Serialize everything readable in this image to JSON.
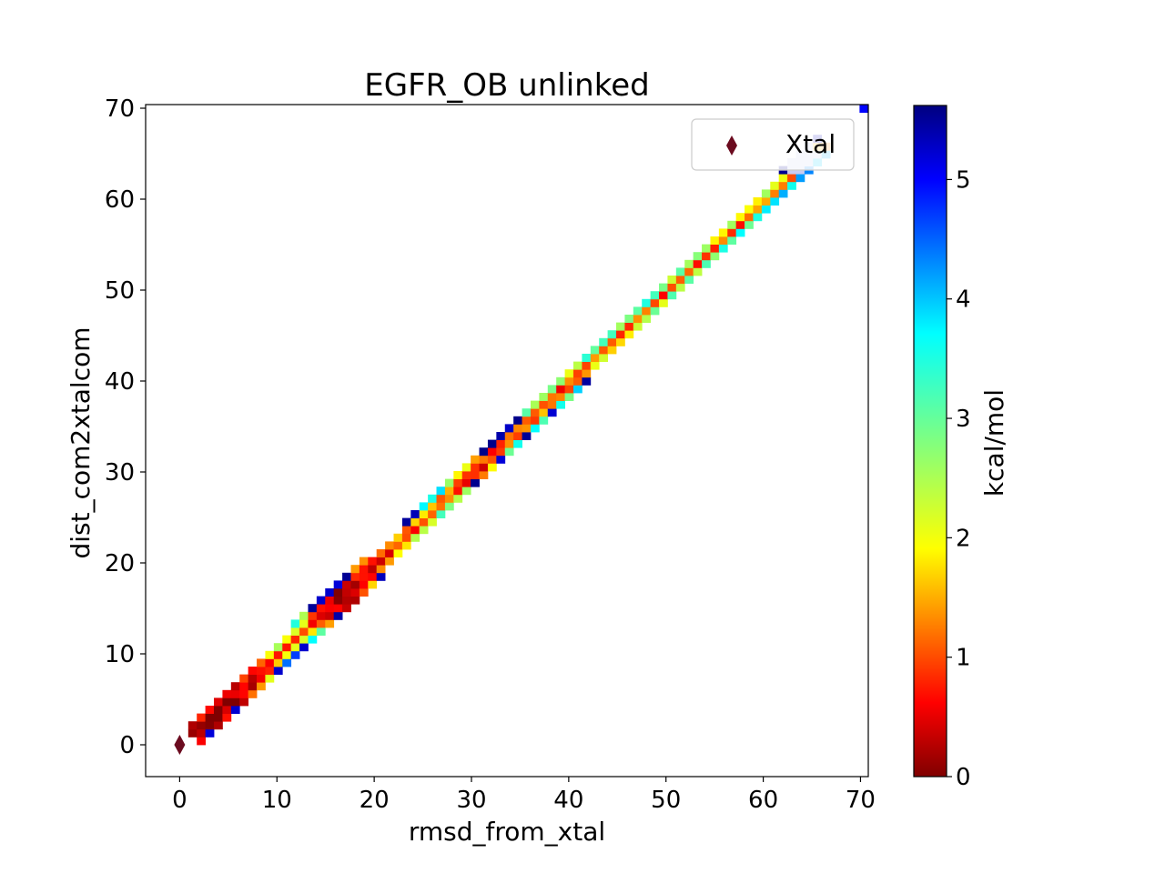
{
  "chart_data": {
    "type": "heatmap",
    "title": "EGFR_OB unlinked",
    "xlabel": "rmsd_from_xtal",
    "ylabel": "dist_com2xtalcom",
    "xlim": [
      -3.5,
      70.8
    ],
    "ylim": [
      -3.5,
      70.4
    ],
    "xticks": [
      0,
      10,
      20,
      30,
      40,
      50,
      60,
      70
    ],
    "yticks": [
      0,
      10,
      20,
      30,
      40,
      50,
      60,
      70
    ],
    "colorbar": {
      "label": "kcal/mol",
      "range": [
        0,
        5.62
      ],
      "ticks": [
        0,
        1,
        2,
        3,
        4,
        5
      ],
      "colormap": "jet_r"
    },
    "bin_size": [
      0.88,
      0.86
    ],
    "grid": false,
    "legend": {
      "placement": "top-right",
      "entries": [
        {
          "label": "Xtal",
          "marker": "diamond",
          "color": "#6b0b1f"
        }
      ]
    },
    "xtal_point": {
      "x": 0,
      "y": 0
    },
    "diagonal_band": [
      [
        1.3,
        0,
        0.9
      ],
      [
        2.3,
        0.1,
        1.0
      ],
      [
        3.2,
        0.1,
        0.3
      ],
      [
        4.2,
        0.2,
        0.5
      ],
      [
        5.2,
        0.3,
        0.6
      ],
      [
        6.5,
        0.4,
        0.9
      ],
      [
        8.0,
        0.5,
        1.8
      ],
      [
        9.5,
        0.9,
        3.8
      ],
      [
        11.0,
        1.1,
        4.0
      ],
      [
        12.5,
        1.0,
        3.5
      ],
      [
        13.5,
        0.8,
        1.8
      ],
      [
        14.5,
        0.4,
        1.2
      ],
      [
        15.5,
        0.2,
        0.6
      ],
      [
        16.5,
        0.0,
        0.3
      ],
      [
        17.5,
        0.2,
        0.8
      ],
      [
        18.5,
        0.5,
        1.5
      ],
      [
        20.0,
        0.6,
        2.0
      ],
      [
        22.0,
        0.8,
        2.5
      ],
      [
        24.0,
        0.9,
        2.8
      ],
      [
        26.0,
        1.0,
        3.2
      ],
      [
        28.0,
        0.9,
        2.5
      ],
      [
        29.5,
        0.7,
        1.6
      ],
      [
        30.5,
        0.6,
        1.5
      ],
      [
        32.0,
        0.8,
        2.6
      ],
      [
        34.0,
        0.9,
        3.2
      ],
      [
        36.0,
        0.8,
        2.8
      ],
      [
        38.0,
        0.8,
        2.6
      ],
      [
        40.0,
        0.9,
        3.0
      ],
      [
        42.0,
        1.0,
        3.8
      ],
      [
        44.0,
        1.0,
        4.2
      ],
      [
        46.0,
        1.0,
        4.2
      ],
      [
        48.0,
        1.0,
        4.4
      ],
      [
        50.0,
        1.0,
        4.5
      ],
      [
        52.0,
        1.0,
        4.5
      ],
      [
        54.0,
        1.0,
        4.4
      ],
      [
        56.0,
        1.0,
        4.4
      ],
      [
        58.0,
        1.0,
        4.5
      ],
      [
        60.0,
        1.0,
        4.6
      ],
      [
        62.0,
        1.0,
        4.8
      ],
      [
        63.5,
        1.0,
        5.0
      ],
      [
        65.0,
        0.9,
        5.3
      ],
      [
        70.0,
        0.5,
        4.9
      ]
    ]
  }
}
